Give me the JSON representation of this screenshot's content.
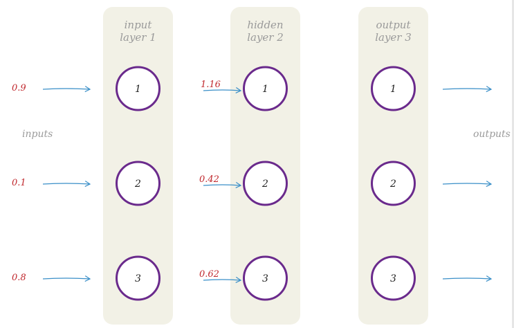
{
  "layers": [
    {
      "line1": "input",
      "line2": "layer 1",
      "nodes": [
        "1",
        "2",
        "3"
      ]
    },
    {
      "line1": "hidden",
      "line2": "layer 2",
      "nodes": [
        "1",
        "2",
        "3"
      ]
    },
    {
      "line1": "output",
      "line2": "layer 3",
      "nodes": [
        "1",
        "2",
        "3"
      ]
    }
  ],
  "labels": {
    "inputs": "inputs",
    "outputs": "outputs"
  },
  "input_values": [
    "0.9",
    "0.1",
    "0.8"
  ],
  "hidden_inputs": [
    "1.16",
    "0.42",
    "0.62"
  ],
  "colors": {
    "column_fill": "#f2f1e6",
    "node_stroke": "#6a2a8c",
    "arrow": "#3a8fc8",
    "value_text": "#c0282d",
    "label_text": "#9a9a9a"
  }
}
